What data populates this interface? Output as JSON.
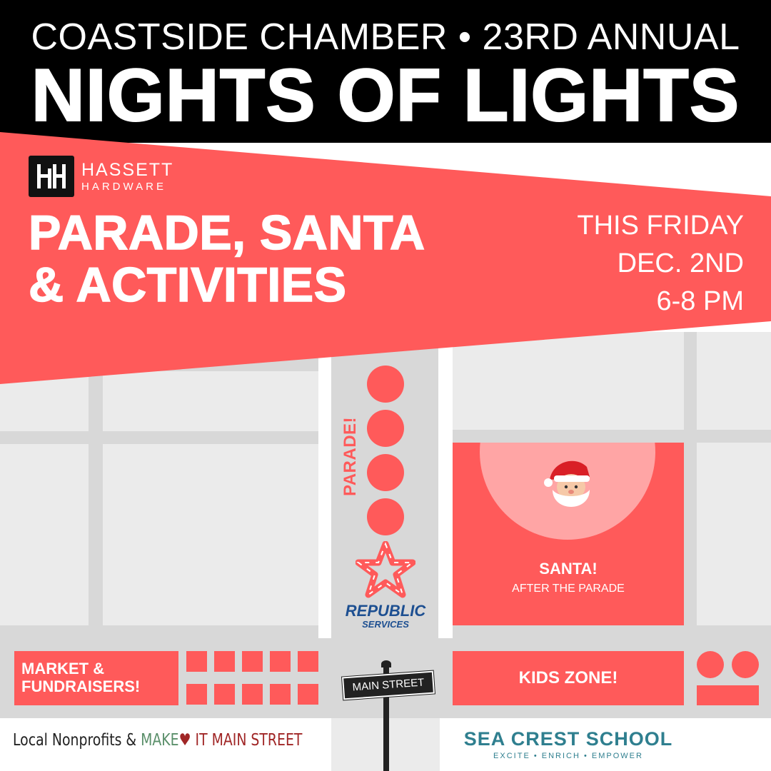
{
  "header": {
    "subtitle": "COASTSIDE CHAMBER • 23RD ANNUAL",
    "title": "NIGHTS OF LIGHTS"
  },
  "sponsor_top": {
    "logo_mark": "H",
    "name_line1": "HASSETT",
    "name_line2": "HARDWARE"
  },
  "banner": {
    "title_line1": "PARADE, SANTA",
    "title_line2": "& ACTIVITIES",
    "date_line1": "THIS FRIDAY",
    "date_line2": "DEC. 2ND",
    "date_line3": "6-8 PM"
  },
  "map": {
    "parade_label": "PARADE!",
    "santa_title": "SANTA!",
    "santa_subtitle": "AFTER THE PARADE",
    "market_line1": "MARKET &",
    "market_line2": "FUNDRAISERS!",
    "kids_zone": "KIDS ZONE!",
    "street_sign": "MAIN STREET"
  },
  "sponsor_republic": {
    "name": "REPUBLIC",
    "sub": "SERVICES"
  },
  "footer": {
    "left_prefix": "Local Nonprofits & ",
    "make": "MAKE",
    "heart": "♥",
    "it": " IT",
    "main_street": " MAIN STREET",
    "school_name": "SEA CREST SCHOOL",
    "school_tagline": "EXCITE • ENRICH • EMPOWER"
  },
  "colors": {
    "accent_red": "#ff5a5a",
    "header_black": "#000000",
    "block_gray": "#ebebeb",
    "street_gray": "#d8d8d8",
    "republic_blue": "#1d4f91",
    "school_teal": "#2f7f8f"
  },
  "icons": [
    "santa-icon",
    "republic-star-logo",
    "hassett-logo"
  ]
}
